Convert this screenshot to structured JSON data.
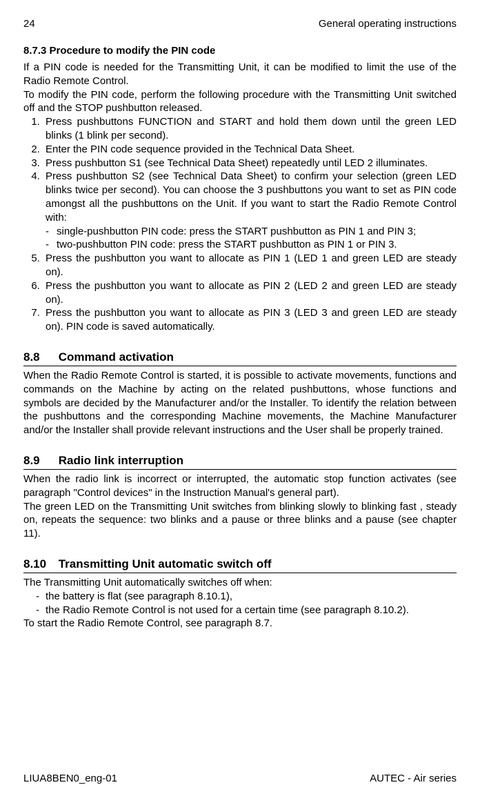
{
  "header": {
    "page_num": "24",
    "running_title": "General operating instructions"
  },
  "s873": {
    "heading": "8.7.3    Procedure to modify the PIN code",
    "p1": "If a PIN code is needed for the Transmitting Unit, it can be modified to limit the use of the Radio Remote Control.",
    "p2": "To modify the PIN code, perform the following procedure with the Transmitting Unit switched off and the STOP pushbutton released.",
    "li1": "Press pushbuttons FUNCTION and START and hold them down until the green LED blinks (1 blink per second).",
    "li2": "Enter the PIN code sequence provided in the Technical Data Sheet.",
    "li3": "Press pushbutton S1 (see Technical Data Sheet) repeatedly until LED 2 illuminates.",
    "li4": "Press pushbutton S2 (see Technical Data Sheet) to confirm your selection (green LED blinks twice per second). You can choose the 3 pushbuttons you want to set as PIN code amongst all the pushbuttons on the Unit. If you want to start the Radio Remote Control with:",
    "li4a": "single-pushbutton PIN code: press the START pushbutton as PIN 1 and PIN 3;",
    "li4b": "two-pushbutton PIN code: press the START pushbutton as PIN 1 or PIN 3.",
    "li5": "Press the pushbutton you want to allocate as PIN 1 (LED 1 and green LED are steady on).",
    "li6": "Press the pushbutton you want to allocate as PIN 2 (LED 2 and green LED are steady on).",
    "li7": "Press the pushbutton you want to allocate as PIN 3 (LED 3 and green LED are steady on). PIN code is saved automatically."
  },
  "s88": {
    "num": "8.8",
    "title": "Command activation",
    "body": "When the Radio Remote Control is started, it is possible to activate movements, functions and commands on the Machine by acting on the related pushbuttons, whose functions and symbols are decided by the Manufacturer and/or the Installer. To identify the relation between the pushbuttons and the corresponding Machine movements, the Machine Manufacturer and/or the Installer shall provide relevant instructions and the User shall be properly trained."
  },
  "s89": {
    "num": "8.9",
    "title": "Radio link interruption",
    "p1": "When the radio link is incorrect or interrupted, the automatic stop function activates (see paragraph \"Control devices\" in the Instruction Manual's general part).",
    "p2": "The green LED on the Transmitting Unit switches from blinking slowly to blinking fast , steady on, repeats the sequence: two blinks and a pause or three blinks and a pause (see chapter 11)."
  },
  "s810": {
    "num": "8.10",
    "title": "Transmitting Unit automatic switch off",
    "lead": "The Transmitting Unit automatically switches off when:",
    "d1": "the battery is flat (see paragraph 8.10.1),",
    "d2": "the Radio Remote Control is not used for a certain time (see paragraph 8.10.2).",
    "trail": "To start the Radio Remote Control, see paragraph 8.7."
  },
  "footer": {
    "left": "LIUA8BEN0_eng-01",
    "right": "AUTEC - Air series"
  }
}
